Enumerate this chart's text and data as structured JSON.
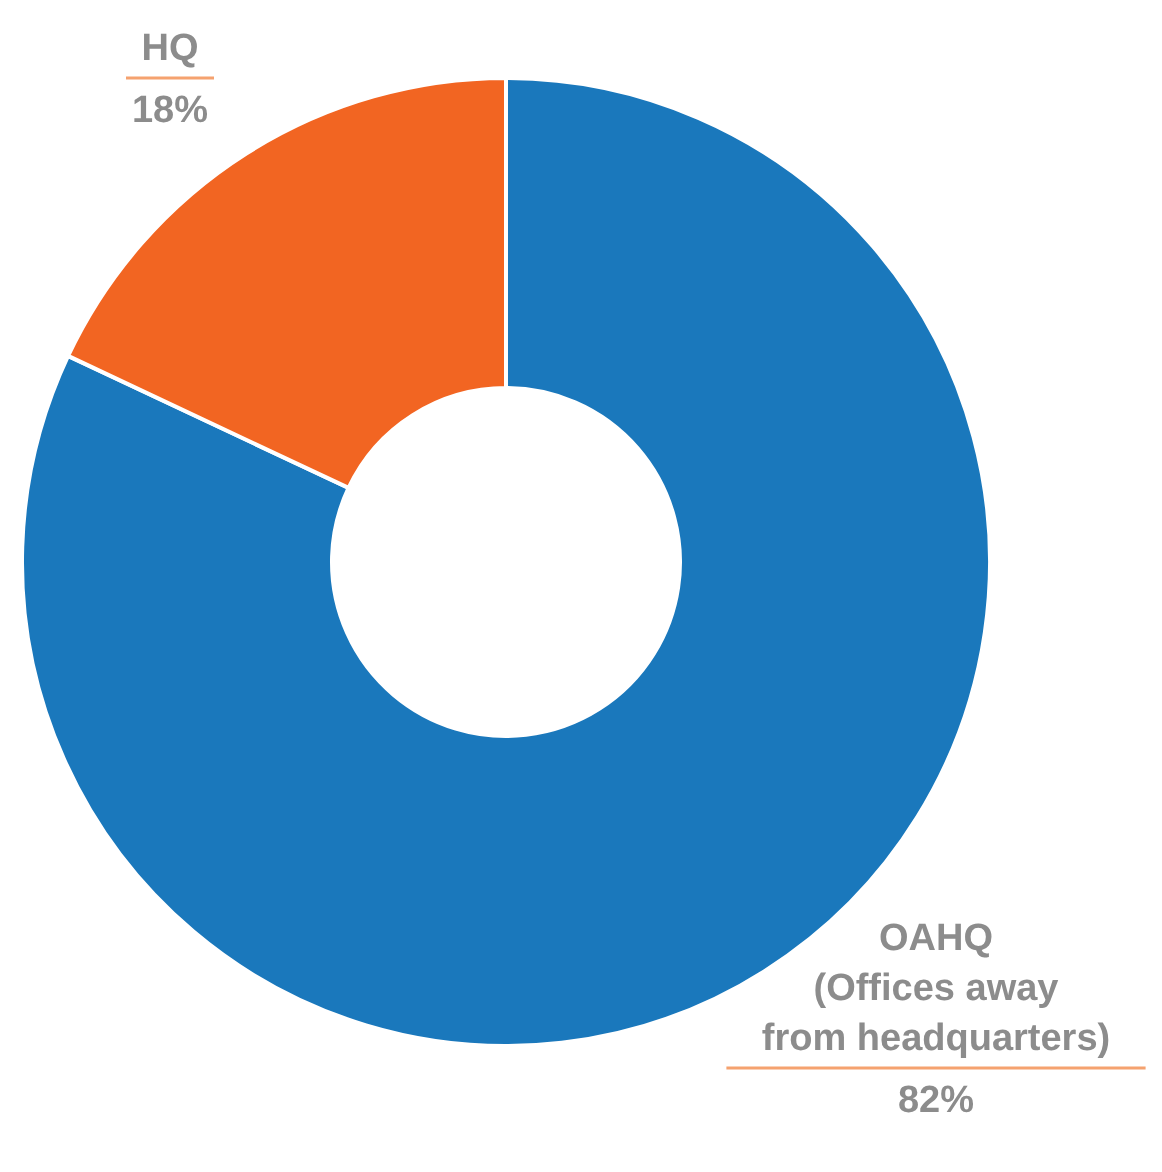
{
  "chart_data": {
    "type": "donut",
    "categories": [
      "OAHQ (Offices away from headquarters)",
      "HQ"
    ],
    "values": [
      82,
      18
    ],
    "colors": [
      "#1a78bc",
      "#f26522"
    ],
    "value_labels": [
      "82%",
      "18%"
    ]
  }
}
